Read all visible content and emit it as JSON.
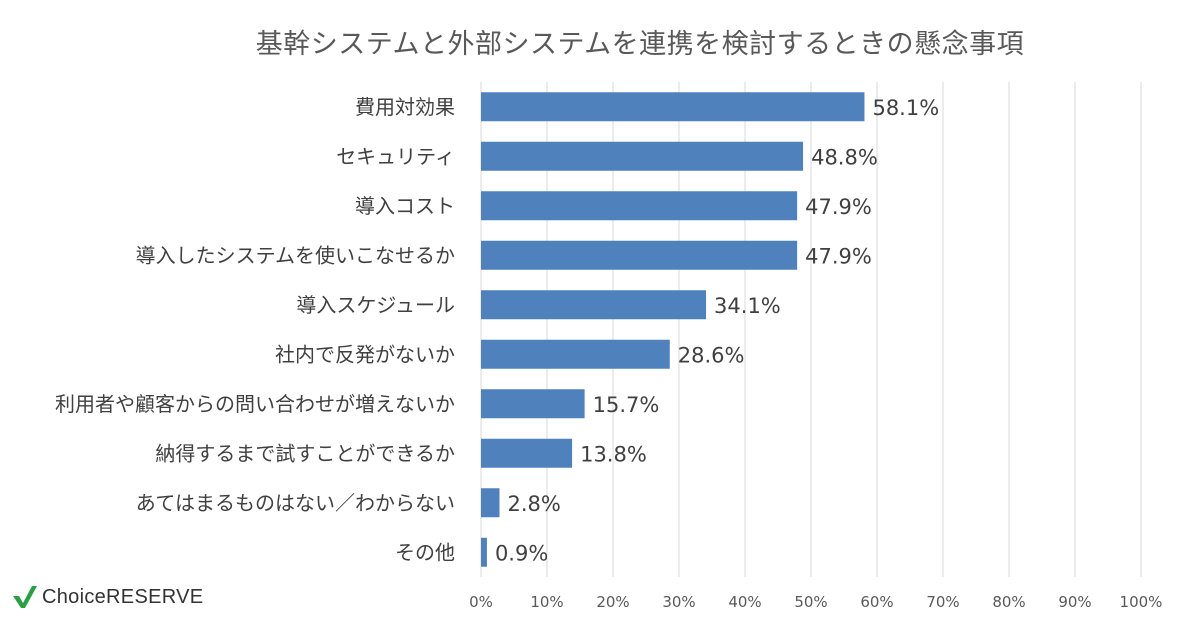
{
  "chart_data": {
    "type": "bar",
    "orientation": "horizontal",
    "title": "基幹システムと外部システムを連携を検討するときの懸念事項",
    "categories": [
      "費用対効果",
      "セキュリティ",
      "導入コスト",
      "導入したシステムを使いこなせるか",
      "導入スケジュール",
      "社内で反発がないか",
      "利用者や顧客からの問い合わせが増えないか",
      "納得するまで試すことができるか",
      "あてはまるものはない／わからない",
      "その他"
    ],
    "values": [
      58.1,
      48.8,
      47.9,
      47.9,
      34.1,
      28.6,
      15.7,
      13.8,
      2.8,
      0.9
    ],
    "value_labels": [
      "58.1%",
      "48.8%",
      "47.9%",
      "47.9%",
      "34.1%",
      "28.6%",
      "15.7%",
      "13.8%",
      "2.8%",
      "0.9%"
    ],
    "xlim": [
      0,
      100
    ],
    "x_ticks": [
      0,
      10,
      20,
      30,
      40,
      50,
      60,
      70,
      80,
      90,
      100
    ],
    "x_tick_labels": [
      "0%",
      "10%",
      "20%",
      "30%",
      "40%",
      "50%",
      "60%",
      "70%",
      "80%",
      "90%",
      "100%"
    ],
    "xlabel": "",
    "ylabel": "",
    "grid": "vertical",
    "bar_color": "#4f81bd",
    "grid_color": "#d9d9d9"
  },
  "logo": {
    "text": "ChoiceRESERVE",
    "mark_color": "#2e9e44"
  }
}
